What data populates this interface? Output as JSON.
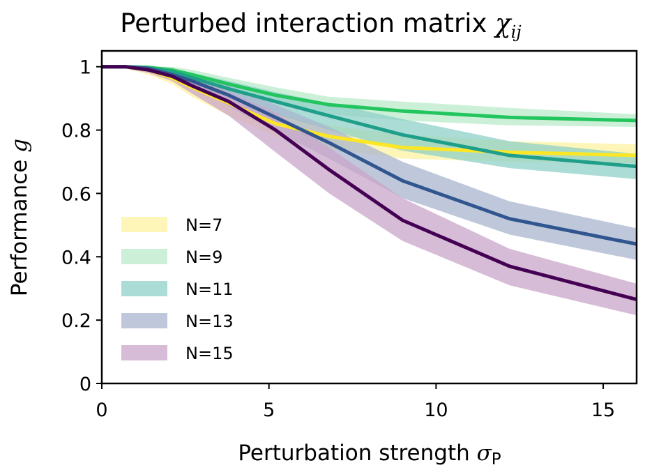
{
  "chart_data": {
    "type": "line",
    "title": "Perturbed interaction matrix",
    "title_math": "χ",
    "title_math_sub": "ij",
    "xlabel": "Perturbation strength",
    "xlabel_math": "σ",
    "xlabel_math_sub": "P",
    "ylabel": "Performance",
    "ylabel_math": "g",
    "xlim": [
      0,
      16
    ],
    "ylim": [
      0,
      1.05
    ],
    "x_ticks": [
      0,
      5,
      10,
      15
    ],
    "x_tick_labels": [
      "0",
      "5",
      "10",
      "15"
    ],
    "y_ticks": [
      0,
      0.2,
      0.4,
      0.6,
      0.8,
      1
    ],
    "y_tick_labels": [
      "0",
      "0.2",
      "0.4",
      "0.6",
      "0.8",
      "1"
    ],
    "grid": false,
    "legend_position": "lower-left",
    "x": [
      0,
      0.7,
      1.4,
      2.1,
      2.7,
      3.8,
      5.2,
      6.8,
      9.0,
      12.2,
      16
    ],
    "series": [
      {
        "name": "N=7",
        "color": "#fde725",
        "band_color": "#fdf3a0",
        "values": [
          1.0,
          1.0,
          0.99,
          0.965,
          0.935,
          0.885,
          0.82,
          0.78,
          0.745,
          0.73,
          0.72
        ],
        "lower": [
          1.0,
          0.995,
          0.975,
          0.945,
          0.905,
          0.845,
          0.78,
          0.74,
          0.71,
          0.7,
          0.695
        ],
        "upper": [
          1.0,
          1.0,
          1.0,
          0.985,
          0.96,
          0.915,
          0.855,
          0.815,
          0.785,
          0.765,
          0.755
        ]
      },
      {
        "name": "N=9",
        "color": "#22c55e",
        "band_color": "#b9ebc9",
        "values": [
          1.0,
          1.0,
          0.998,
          0.99,
          0.975,
          0.945,
          0.91,
          0.88,
          0.86,
          0.84,
          0.83
        ],
        "lower": [
          1.0,
          1.0,
          0.99,
          0.975,
          0.955,
          0.92,
          0.885,
          0.85,
          0.83,
          0.815,
          0.81
        ],
        "upper": [
          1.0,
          1.0,
          1.0,
          1.0,
          0.99,
          0.965,
          0.935,
          0.905,
          0.89,
          0.87,
          0.85
        ]
      },
      {
        "name": "N=11",
        "color": "#1f9e89",
        "band_color": "#8fd0c8",
        "values": [
          1.0,
          1.0,
          0.995,
          0.985,
          0.965,
          0.93,
          0.89,
          0.845,
          0.785,
          0.72,
          0.685
        ],
        "lower": [
          1.0,
          1.0,
          0.985,
          0.97,
          0.945,
          0.9,
          0.85,
          0.8,
          0.735,
          0.68,
          0.645
        ],
        "upper": [
          1.0,
          1.0,
          1.0,
          0.995,
          0.98,
          0.955,
          0.92,
          0.885,
          0.835,
          0.765,
          0.725
        ]
      },
      {
        "name": "N=13",
        "color": "#31568f",
        "band_color": "#aab6cf",
        "values": [
          1.0,
          1.0,
          0.995,
          0.975,
          0.955,
          0.91,
          0.84,
          0.76,
          0.64,
          0.52,
          0.44
        ],
        "lower": [
          1.0,
          1.0,
          0.985,
          0.96,
          0.935,
          0.875,
          0.795,
          0.71,
          0.585,
          0.47,
          0.39
        ],
        "upper": [
          1.0,
          1.0,
          1.0,
          0.99,
          0.97,
          0.94,
          0.88,
          0.81,
          0.7,
          0.575,
          0.49
        ]
      },
      {
        "name": "N=15",
        "color": "#440154",
        "band_color": "#c9a5c9",
        "values": [
          1.0,
          1.0,
          0.99,
          0.97,
          0.94,
          0.89,
          0.8,
          0.675,
          0.515,
          0.37,
          0.265
        ],
        "lower": [
          1.0,
          0.995,
          0.98,
          0.955,
          0.915,
          0.845,
          0.73,
          0.6,
          0.45,
          0.31,
          0.215
        ],
        "upper": [
          1.0,
          1.0,
          1.0,
          0.985,
          0.965,
          0.92,
          0.855,
          0.745,
          0.585,
          0.425,
          0.315
        ]
      }
    ]
  }
}
